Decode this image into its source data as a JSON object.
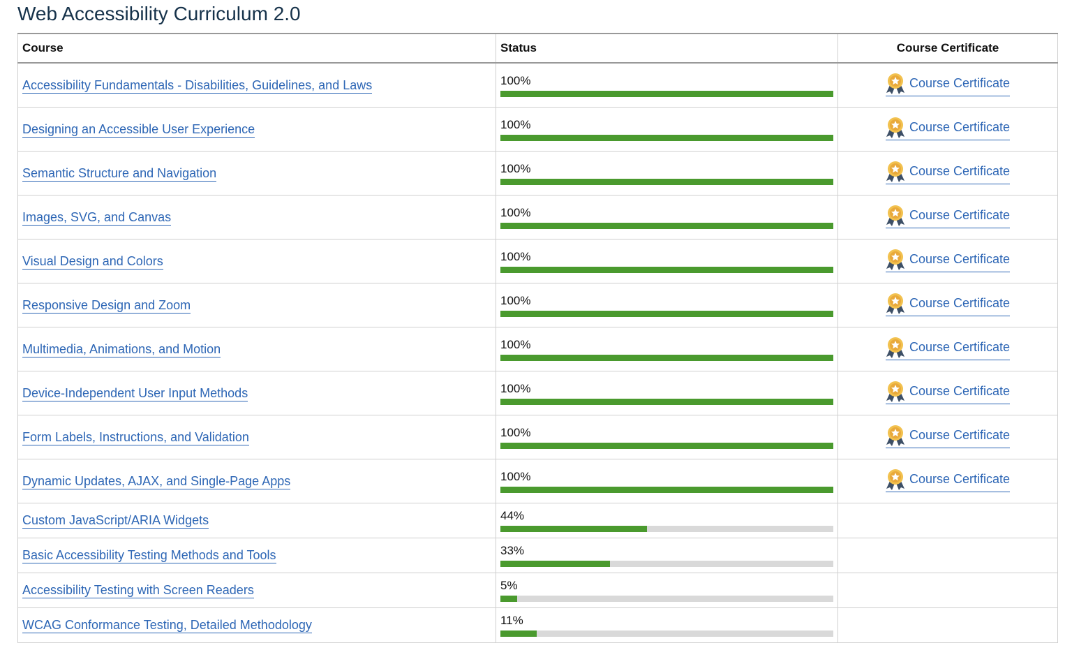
{
  "header": {
    "title": "Web Accessibility Curriculum 2.0"
  },
  "table": {
    "columns": [
      "Course",
      "Status",
      "Course Certificate"
    ],
    "rows": [
      {
        "course": "Accessibility Fundamentals - Disabilities, Guidelines, and Laws",
        "status": {
          "value": 100,
          "label": "100%"
        },
        "certificate": "Course Certificate"
      },
      {
        "course": "Designing an Accessible User Experience",
        "status": {
          "value": 100,
          "label": "100%"
        },
        "certificate": "Course Certificate"
      },
      {
        "course": "Semantic Structure and Navigation",
        "status": {
          "value": 100,
          "label": "100%"
        },
        "certificate": "Course Certificate"
      },
      {
        "course": "Images, SVG, and Canvas",
        "status": {
          "value": 100,
          "label": "100%"
        },
        "certificate": "Course Certificate"
      },
      {
        "course": "Visual Design and Colors",
        "status": {
          "value": 100,
          "label": "100%"
        },
        "certificate": "Course Certificate"
      },
      {
        "course": "Responsive Design and Zoom",
        "status": {
          "value": 100,
          "label": "100%"
        },
        "certificate": "Course Certificate"
      },
      {
        "course": "Multimedia, Animations, and Motion",
        "status": {
          "value": 100,
          "label": "100%"
        },
        "certificate": "Course Certificate"
      },
      {
        "course": "Device-Independent User Input Methods",
        "status": {
          "value": 100,
          "label": "100%"
        },
        "certificate": "Course Certificate"
      },
      {
        "course": "Form Labels, Instructions, and Validation",
        "status": {
          "value": 100,
          "label": "100%"
        },
        "certificate": "Course Certificate"
      },
      {
        "course": "Dynamic Updates, AJAX, and Single-Page Apps",
        "status": {
          "value": 100,
          "label": "100%"
        },
        "certificate": "Course Certificate"
      },
      {
        "course": "Custom JavaScript/ARIA Widgets",
        "status": {
          "value": 44,
          "label": "44%"
        }
      },
      {
        "course": "Basic Accessibility Testing Methods and Tools",
        "status": {
          "value": 33,
          "label": "33%"
        }
      },
      {
        "course": "Accessibility Testing with Screen Readers",
        "status": {
          "value": 5,
          "label": "5%"
        }
      },
      {
        "course": "WCAG Conformance Testing, Detailed Methodology",
        "status": {
          "value": 11,
          "label": "11%"
        }
      }
    ]
  }
}
